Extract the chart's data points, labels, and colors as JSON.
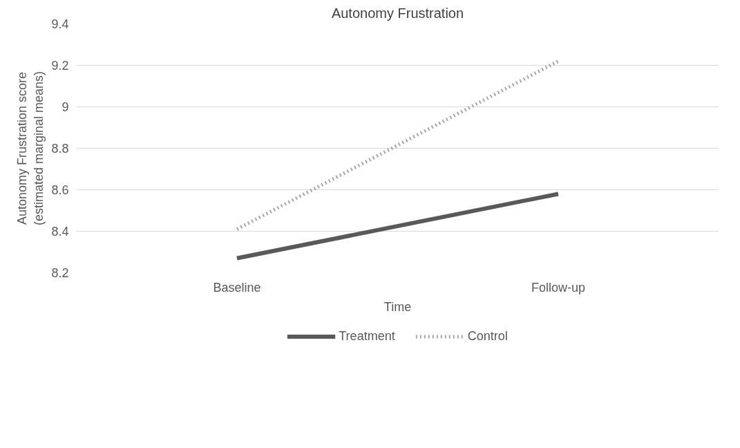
{
  "chart_data": {
    "type": "line",
    "title": "Autonomy Frustration",
    "xlabel": "Time",
    "ylabel": "Autonomy Frustration score\n(estimated marginal means)",
    "categories": [
      "Baseline",
      "Follow-up"
    ],
    "series": [
      {
        "name": "Treatment",
        "color": "#595959",
        "line_style": "solid",
        "values": [
          8.27,
          8.58
        ]
      },
      {
        "name": "Control",
        "color": "#a6a6a6",
        "line_style": "dotted",
        "values": [
          8.41,
          9.22
        ]
      }
    ],
    "ylim": [
      8.2,
      9.4
    ],
    "yticks": [
      8.2,
      8.4,
      8.6,
      8.8,
      9,
      9.2,
      9.4
    ],
    "grid": "y",
    "legend": "bottom",
    "marker": "none"
  }
}
